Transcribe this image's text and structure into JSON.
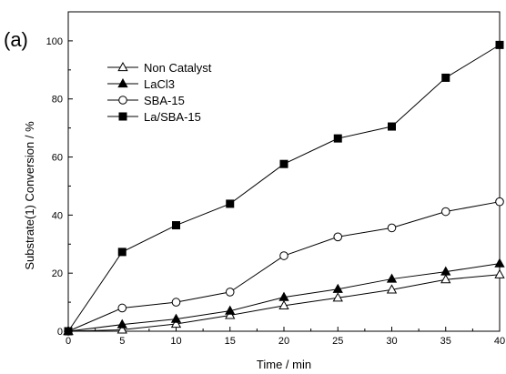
{
  "panel_label": "(a)",
  "chart_data": {
    "type": "line",
    "title": "",
    "xlabel": "Time / min",
    "ylabel": "Substrate(1) Conversion / %",
    "xlim": [
      0,
      40
    ],
    "ylim": [
      0,
      110
    ],
    "xticks": [
      0,
      5,
      10,
      15,
      20,
      25,
      30,
      35,
      40
    ],
    "yticks": [
      0,
      20,
      40,
      60,
      80,
      100
    ],
    "grid": false,
    "legend_position": "top-left",
    "x": [
      0,
      5,
      10,
      15,
      20,
      25,
      30,
      35,
      40
    ],
    "series": [
      {
        "name": "Non Catalyst",
        "marker": "triangle-open",
        "values": [
          0,
          0.5,
          2.5,
          5.5,
          8.8,
          11.5,
          14.3,
          17.8,
          19.5
        ]
      },
      {
        "name": "LaCl3",
        "marker": "triangle-filled",
        "values": [
          0,
          2.3,
          4.2,
          7.0,
          11.7,
          14.5,
          18.0,
          20.5,
          23.3
        ]
      },
      {
        "name": "SBA-15",
        "marker": "circle-open",
        "values": [
          0,
          8.0,
          10.0,
          13.5,
          26.0,
          32.5,
          35.6,
          41.2,
          44.6
        ]
      },
      {
        "name": "La/SBA-15",
        "marker": "square-filled",
        "values": [
          0,
          27.3,
          36.5,
          43.9,
          57.6,
          66.4,
          70.5,
          87.3,
          98.6
        ]
      }
    ]
  }
}
